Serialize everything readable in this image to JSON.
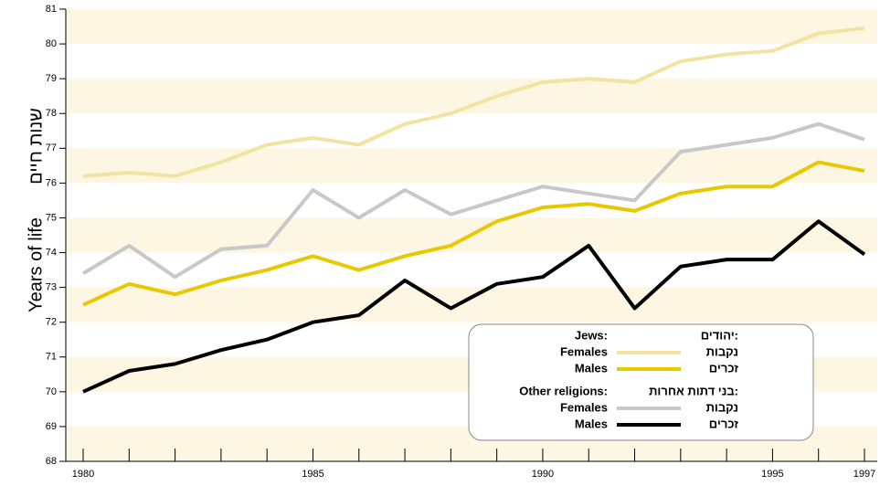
{
  "chart_data": {
    "type": "line",
    "ylabel": "Years of life",
    "ylabel_he": "שנות חיים",
    "x": [
      1980,
      1981,
      1982,
      1983,
      1984,
      1985,
      1986,
      1987,
      1988,
      1989,
      1990,
      1991,
      1992,
      1993,
      1994,
      1995,
      1996,
      1997
    ],
    "xlim": [
      1980,
      1997
    ],
    "xticks": [
      1980,
      1985,
      1990,
      1995,
      1997
    ],
    "ylim": [
      68,
      81
    ],
    "yticks": [
      68,
      69,
      70,
      71,
      72,
      73,
      74,
      75,
      76,
      77,
      78,
      79,
      80,
      81
    ],
    "band_color": "#fdf6e3",
    "legend_groups": [
      {
        "title": "Jews:",
        "title_he": "יהודים:"
      },
      {
        "title": "Other religions:",
        "title_he": "בני דתות אחרות:"
      }
    ],
    "series": [
      {
        "name": "Females",
        "name_he": "נקבות",
        "group": 0,
        "color": "#f3e3a0",
        "values": [
          76.2,
          76.3,
          76.2,
          76.6,
          77.1,
          77.3,
          77.1,
          77.7,
          78.0,
          78.5,
          78.9,
          79.0,
          78.9,
          79.5,
          79.7,
          79.8,
          80.3,
          80.45
        ]
      },
      {
        "name": "Males",
        "name_he": "זכרים",
        "group": 0,
        "color": "#e8c800",
        "values": [
          72.5,
          73.1,
          72.8,
          73.2,
          73.5,
          73.9,
          73.5,
          73.9,
          74.2,
          74.9,
          75.3,
          75.4,
          75.2,
          75.7,
          75.9,
          75.9,
          76.6,
          76.35
        ]
      },
      {
        "name": "Females",
        "name_he": "נקבות",
        "group": 1,
        "color": "#c8c8c8",
        "values": [
          73.4,
          74.2,
          73.3,
          74.1,
          74.2,
          75.8,
          75.0,
          75.8,
          75.1,
          75.5,
          75.9,
          75.7,
          75.5,
          76.9,
          77.1,
          77.3,
          77.7,
          77.25
        ]
      },
      {
        "name": "Males",
        "name_he": "זכרים",
        "group": 1,
        "color": "#000000",
        "values": [
          70.0,
          70.6,
          70.8,
          71.2,
          71.5,
          72.0,
          72.2,
          73.2,
          72.4,
          73.1,
          73.3,
          74.2,
          72.4,
          73.6,
          73.8,
          73.8,
          74.9,
          73.95
        ]
      }
    ]
  }
}
